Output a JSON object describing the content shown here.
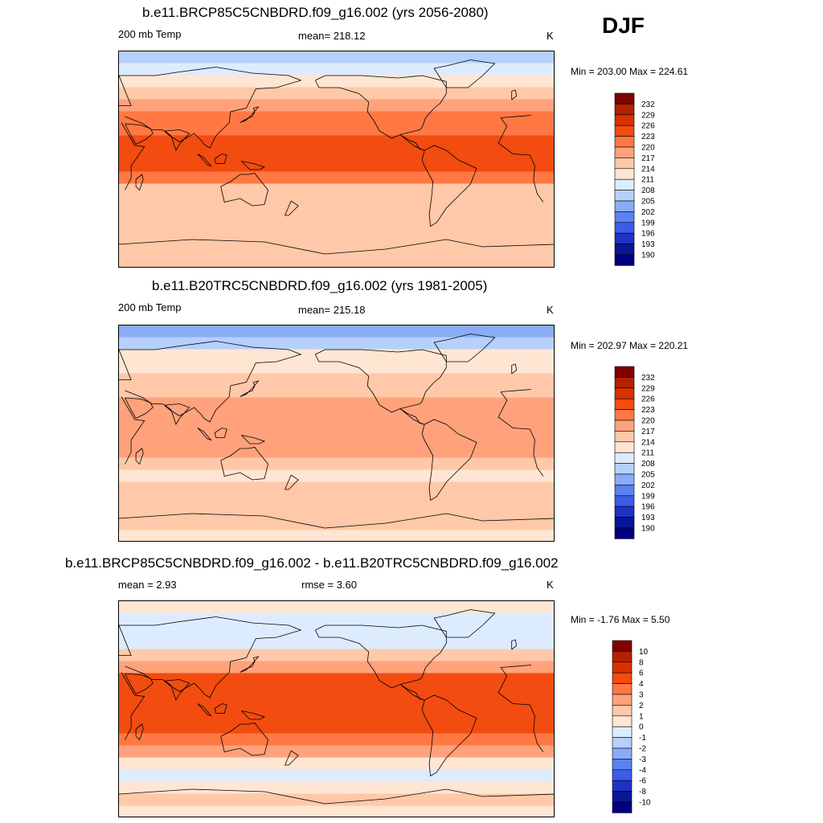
{
  "season": "DJF",
  "chart_data": [
    {
      "type": "heatmap",
      "title": "b.e11.BRCP85C5CNBDRD.f09_g16.002 (yrs 2056-2080)",
      "left_label": "200 mb Temp",
      "center_label": "mean= 218.12",
      "units": "K",
      "minmax": "Min = 203.00 Max = 224.61",
      "min": 203.0,
      "max": 224.61,
      "mean": 218.12,
      "levels": [
        "232",
        "229",
        "226",
        "223",
        "220",
        "217",
        "214",
        "211",
        "208",
        "205",
        "202",
        "199",
        "196",
        "193",
        "190"
      ],
      "colors": [
        "#800000",
        "#b22200",
        "#d93000",
        "#f24c10",
        "#ff7844",
        "#ffa27c",
        "#ffc8a8",
        "#ffe6d2",
        "#dcecfe",
        "#b6d0fc",
        "#8aacf8",
        "#5a82f2",
        "#3b5ce8",
        "#1e32c8",
        "#0a1496",
        "#000082"
      ],
      "lat_bands_deg": [
        85,
        75,
        65,
        55,
        45,
        35,
        25,
        15,
        5,
        -5,
        -15,
        -25,
        -35,
        -45,
        -55,
        -65,
        -75,
        -85
      ],
      "band_values": [
        205,
        208,
        212,
        216,
        219,
        221,
        222,
        225,
        224,
        223,
        221,
        216,
        214,
        214,
        216,
        216,
        215,
        214
      ]
    },
    {
      "type": "heatmap",
      "title": "b.e11.B20TRC5CNBDRD.f09_g16.002 (yrs 1981-2005)",
      "left_label": "200 mb Temp",
      "center_label": "mean= 215.18",
      "units": "K",
      "minmax": "Min = 202.97 Max = 220.21",
      "min": 202.97,
      "max": 220.21,
      "mean": 215.18,
      "levels": [
        "232",
        "229",
        "226",
        "223",
        "220",
        "217",
        "214",
        "211",
        "208",
        "205",
        "202",
        "199",
        "196",
        "193",
        "190"
      ],
      "colors": [
        "#800000",
        "#b22200",
        "#d93000",
        "#f24c10",
        "#ff7844",
        "#ffa27c",
        "#ffc8a8",
        "#ffe6d2",
        "#dcecfe",
        "#b6d0fc",
        "#8aacf8",
        "#5a82f2",
        "#3b5ce8",
        "#1e32c8",
        "#0a1496",
        "#000082"
      ],
      "lat_bands_deg": [
        85,
        75,
        65,
        55,
        45,
        35,
        25,
        15,
        5,
        -5,
        -15,
        -25,
        -35,
        -45,
        -55,
        -65,
        -75,
        -85
      ],
      "band_values": [
        204,
        207,
        211,
        213,
        215,
        216,
        218,
        219,
        219,
        218,
        217,
        214,
        213,
        214,
        214,
        215,
        214,
        212
      ]
    },
    {
      "type": "heatmap",
      "title": "b.e11.BRCP85C5CNBDRD.f09_g16.002 - b.e11.B20TRC5CNBDRD.f09_g16.002",
      "left_label": "mean =   2.93",
      "center_label": "rmse =   3.60",
      "units": "K",
      "minmax": "Min =  -1.76 Max =   5.50",
      "min": -1.76,
      "max": 5.5,
      "mean": 2.93,
      "rmse": 3.6,
      "levels": [
        "10",
        "8",
        "6",
        "4",
        "3",
        "2",
        "1",
        "0",
        "-1",
        "-2",
        "-3",
        "-4",
        "-6",
        "-8",
        "-10"
      ],
      "colors": [
        "#800000",
        "#b22200",
        "#d93000",
        "#f24c10",
        "#ff7844",
        "#ffa27c",
        "#ffc8a8",
        "#ffe6d2",
        "#dcecfe",
        "#b6d0fc",
        "#8aacf8",
        "#5a82f2",
        "#3b5ce8",
        "#1e32c8",
        "#0a1496",
        "#000082"
      ],
      "lat_bands_deg": [
        85,
        75,
        65,
        55,
        45,
        35,
        25,
        15,
        5,
        -5,
        -15,
        -25,
        -35,
        -45,
        -55,
        -65,
        -75,
        -85
      ],
      "band_values": [
        0.5,
        -0.5,
        -1,
        -0.5,
        1,
        2.5,
        4.5,
        4.5,
        4.5,
        4.5,
        4.5,
        3,
        2,
        0.5,
        -0.5,
        0.5,
        1,
        0.5
      ]
    }
  ]
}
